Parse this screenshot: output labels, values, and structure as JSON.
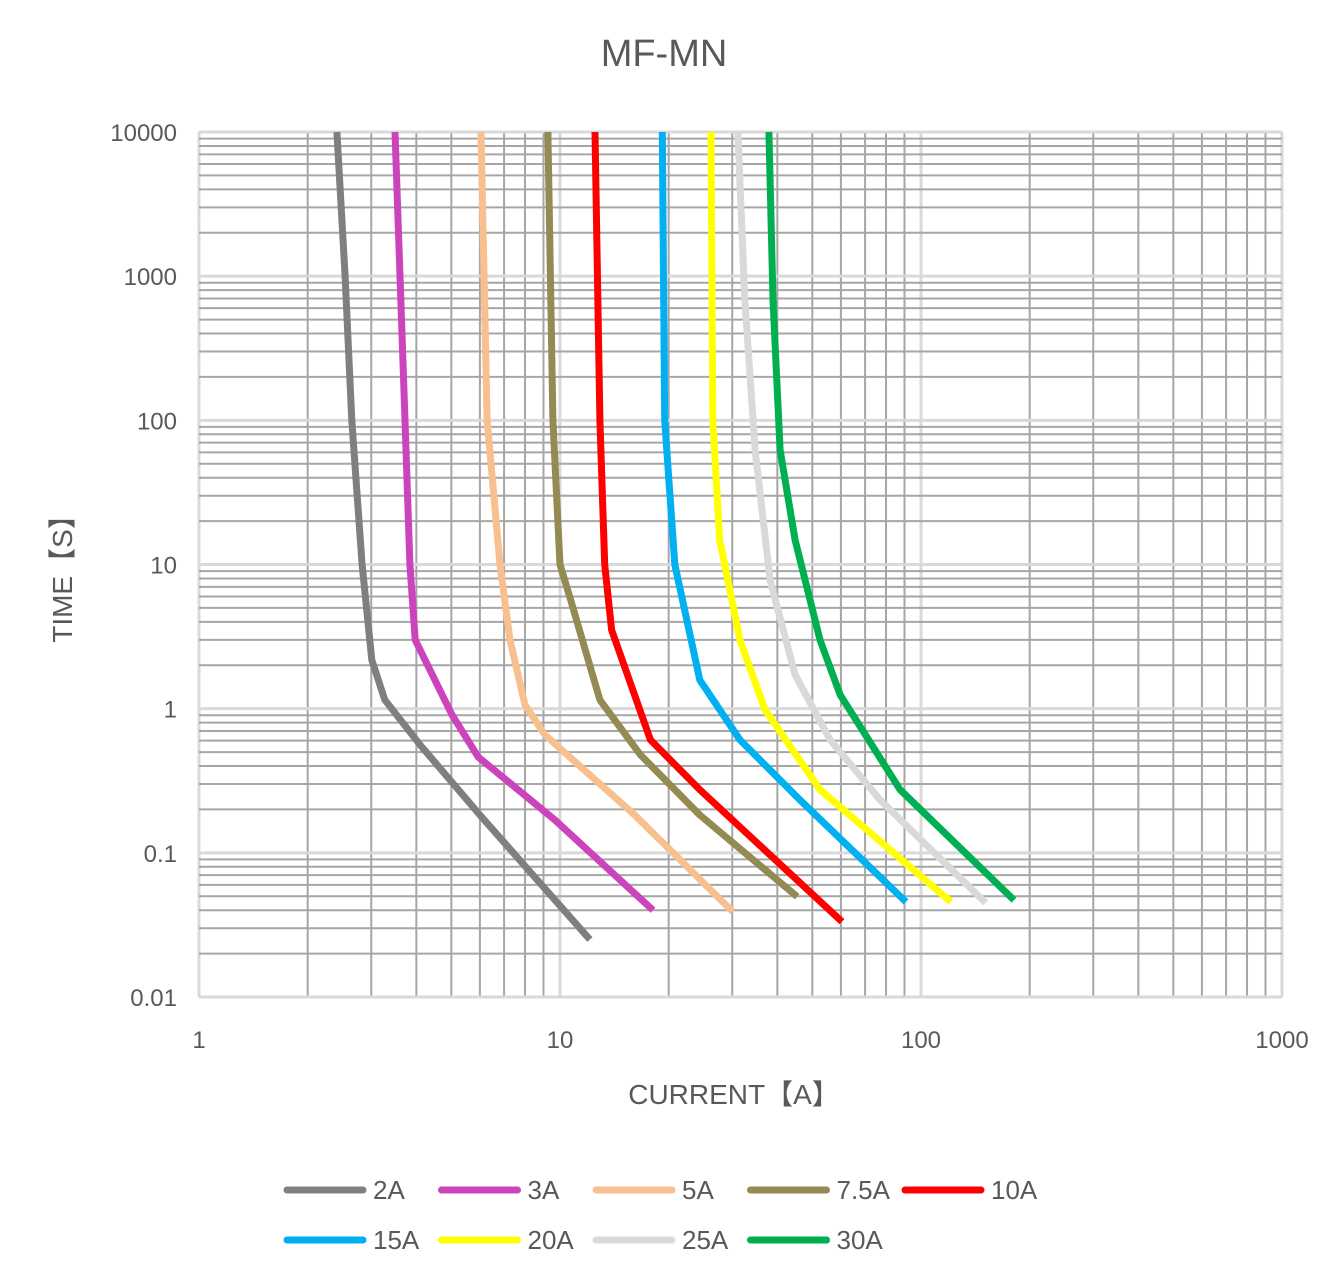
{
  "chart_data": {
    "type": "line",
    "title": "MF-MN",
    "xlabel": "CURRENT【A】",
    "ylabel": "TIME【S】",
    "xscale": "log",
    "yscale": "log",
    "xlim": [
      1,
      1000
    ],
    "ylim": [
      0.01,
      10000
    ],
    "xticks": [
      "1",
      "10",
      "100",
      "1000"
    ],
    "yticks": [
      "0.01",
      "0.1",
      "1",
      "10",
      "100",
      "1000",
      "10000"
    ],
    "grid": true,
    "legend_position": "bottom",
    "series": [
      {
        "name": "2A",
        "color": "#7f7f7f",
        "points": [
          [
            2.41,
            10000
          ],
          [
            2.54,
            1000
          ],
          [
            2.65,
            100
          ],
          [
            2.83,
            10
          ],
          [
            3.01,
            2.18
          ],
          [
            3.27,
            1.15
          ],
          [
            4.1,
            0.56
          ],
          [
            6.0,
            0.183
          ],
          [
            12.1,
            0.025
          ]
        ]
      },
      {
        "name": "3A",
        "color": "#cc44bb",
        "points": [
          [
            3.49,
            10000
          ],
          [
            3.72,
            100
          ],
          [
            3.84,
            10
          ],
          [
            3.97,
            3.0
          ],
          [
            5.02,
            0.906
          ],
          [
            5.93,
            0.463
          ],
          [
            9.68,
            0.169
          ],
          [
            18.1,
            0.04
          ]
        ]
      },
      {
        "name": "5A",
        "color": "#f8bf8f",
        "points": [
          [
            6.04,
            10000
          ],
          [
            6.28,
            100
          ],
          [
            6.82,
            10
          ],
          [
            7.27,
            3.0
          ],
          [
            8.0,
            1.06
          ],
          [
            9.08,
            0.658
          ],
          [
            16.1,
            0.183
          ],
          [
            30.1,
            0.039
          ]
        ]
      },
      {
        "name": "7.5A",
        "color": "#948a54",
        "points": [
          [
            9.26,
            10000
          ],
          [
            9.56,
            100
          ],
          [
            10.0,
            10
          ],
          [
            10.7,
            5.69
          ],
          [
            12.9,
            1.15
          ],
          [
            16.7,
            0.479
          ],
          [
            24.4,
            0.183
          ],
          [
            45.4,
            0.0496
          ]
        ]
      },
      {
        "name": "10A",
        "color": "#ff0000",
        "points": [
          [
            12.5,
            10000
          ],
          [
            12.9,
            100
          ],
          [
            13.3,
            10
          ],
          [
            13.9,
            3.52
          ],
          [
            17.8,
            0.608
          ],
          [
            24.4,
            0.274
          ],
          [
            60.4,
            0.0333
          ]
        ]
      },
      {
        "name": "15A",
        "color": "#00b0f0",
        "points": [
          [
            19.2,
            10000
          ],
          [
            19.5,
            100
          ],
          [
            20.8,
            10
          ],
          [
            24.4,
            1.58
          ],
          [
            31.5,
            0.608
          ],
          [
            46.2,
            0.233
          ],
          [
            90.9,
            0.0457
          ]
        ]
      },
      {
        "name": "20A",
        "color": "#ffff00",
        "points": [
          [
            26.2,
            10000
          ],
          [
            26.5,
            100
          ],
          [
            27.7,
            14.8
          ],
          [
            31.5,
            3.0
          ],
          [
            37.0,
            0.98
          ],
          [
            52.5,
            0.274
          ],
          [
            121,
            0.0457
          ]
        ]
      },
      {
        "name": "25A",
        "color": "#d9d9d9",
        "points": [
          [
            31.1,
            10000
          ],
          [
            32.5,
            684
          ],
          [
            34.7,
            62.4
          ],
          [
            38.2,
            7.8
          ],
          [
            44.8,
            1.72
          ],
          [
            56.0,
            0.608
          ],
          [
            77,
            0.233
          ],
          [
            151,
            0.045
          ]
        ]
      },
      {
        "name": "30A",
        "color": "#00b050",
        "points": [
          [
            37.9,
            10000
          ],
          [
            38.9,
            684
          ],
          [
            40.7,
            62.4
          ],
          [
            44.8,
            14.8
          ],
          [
            52.5,
            3.0
          ],
          [
            59.7,
            1.25
          ],
          [
            87.5,
            0.274
          ],
          [
            181,
            0.047
          ]
        ]
      }
    ]
  }
}
